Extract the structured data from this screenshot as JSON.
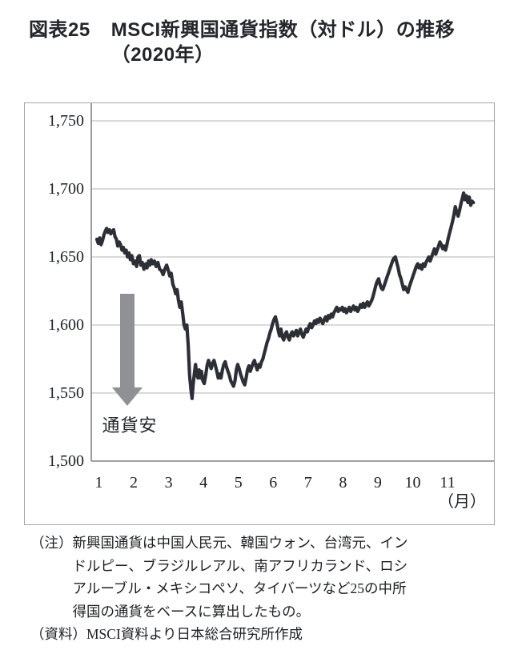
{
  "title": {
    "tag": "図表25",
    "line1": "MSCI新興国通貨指数（対ドル）の推移",
    "line2": "（2020年）"
  },
  "notes": {
    "note_label": "（注）",
    "note_lines": [
      "新興国通貨は中国人民元、韓国ウォン、台湾元、イン",
      "ドルピー、ブラジルレアル、南アフリカランド、ロシ",
      "アルーブル・メキシコペソ、タイバーツなど25の中所",
      "得国の通貨をベースに算出したもの。"
    ],
    "source_label": "（資料）",
    "source_text": "MSCI資料より日本総合研究所作成"
  },
  "colors": {
    "line": "#2c2f36",
    "grid": "#b5b5b5",
    "axis": "#848484",
    "frame": "#a6a6a6",
    "arrow": "#8f9194",
    "text": "#1c1f26"
  },
  "chart_data": {
    "type": "line",
    "title": "MSCI新興国通貨指数（対ドル）の推移（2020年）",
    "xlabel": "（月）",
    "ylabel": "",
    "ylim": [
      1500,
      1763
    ],
    "xlim": [
      1,
      12.4
    ],
    "grid": true,
    "legend": "none",
    "y_axis": {
      "tick_values": [
        1750,
        1700,
        1650,
        1600,
        1550,
        1500
      ],
      "tick_labels": [
        "1,750",
        "1,700",
        "1,650",
        "1,600",
        "1,550",
        "1,500"
      ]
    },
    "x_axis": {
      "tick_labels": [
        "1",
        "2",
        "3",
        "4",
        "5",
        "6",
        "7",
        "8",
        "9",
        "10",
        "11"
      ],
      "unit_label": "（月）"
    },
    "annotation": {
      "arrow_direction": "down",
      "label": "通貨安"
    },
    "series": [
      {
        "name": "MSCI新興国通貨指数（対ドル）",
        "x_unit": "month (1 = Jan 1, 2020)",
        "points": [
          [
            1.0,
            1663
          ],
          [
            1.04,
            1660
          ],
          [
            1.08,
            1664
          ],
          [
            1.12,
            1659
          ],
          [
            1.16,
            1662
          ],
          [
            1.2,
            1666
          ],
          [
            1.24,
            1669
          ],
          [
            1.28,
            1671
          ],
          [
            1.32,
            1668
          ],
          [
            1.36,
            1670
          ],
          [
            1.4,
            1667
          ],
          [
            1.44,
            1669
          ],
          [
            1.48,
            1670
          ],
          [
            1.52,
            1665
          ],
          [
            1.56,
            1663
          ],
          [
            1.6,
            1658
          ],
          [
            1.64,
            1661
          ],
          [
            1.68,
            1659
          ],
          [
            1.72,
            1655
          ],
          [
            1.76,
            1657
          ],
          [
            1.8,
            1653
          ],
          [
            1.84,
            1655
          ],
          [
            1.88,
            1650
          ],
          [
            1.92,
            1653
          ],
          [
            1.96,
            1648
          ],
          [
            2.0,
            1651
          ],
          [
            2.05,
            1645
          ],
          [
            2.1,
            1647
          ],
          [
            2.14,
            1643
          ],
          [
            2.18,
            1650
          ],
          [
            2.22,
            1651
          ],
          [
            2.26,
            1644
          ],
          [
            2.3,
            1646
          ],
          [
            2.35,
            1641
          ],
          [
            2.4,
            1645
          ],
          [
            2.44,
            1642
          ],
          [
            2.48,
            1647
          ],
          [
            2.52,
            1644
          ],
          [
            2.56,
            1648
          ],
          [
            2.6,
            1645
          ],
          [
            2.65,
            1647
          ],
          [
            2.7,
            1643
          ],
          [
            2.75,
            1646
          ],
          [
            2.8,
            1641
          ],
          [
            2.85,
            1640
          ],
          [
            2.9,
            1637
          ],
          [
            2.95,
            1641
          ],
          [
            3.0,
            1644
          ],
          [
            3.05,
            1640
          ],
          [
            3.09,
            1636
          ],
          [
            3.13,
            1638
          ],
          [
            3.18,
            1630
          ],
          [
            3.22,
            1627
          ],
          [
            3.26,
            1623
          ],
          [
            3.3,
            1626
          ],
          [
            3.34,
            1618
          ],
          [
            3.38,
            1613
          ],
          [
            3.42,
            1617
          ],
          [
            3.46,
            1609
          ],
          [
            3.5,
            1600
          ],
          [
            3.54,
            1597
          ],
          [
            3.58,
            1600
          ],
          [
            3.62,
            1585
          ],
          [
            3.66,
            1563
          ],
          [
            3.7,
            1552
          ],
          [
            3.73,
            1546
          ],
          [
            3.76,
            1556
          ],
          [
            3.8,
            1565
          ],
          [
            3.83,
            1571
          ],
          [
            3.86,
            1564
          ],
          [
            3.9,
            1561
          ],
          [
            3.93,
            1567
          ],
          [
            3.97,
            1561
          ],
          [
            4.0,
            1566
          ],
          [
            4.04,
            1559
          ],
          [
            4.08,
            1557
          ],
          [
            4.12,
            1563
          ],
          [
            4.16,
            1570
          ],
          [
            4.2,
            1574
          ],
          [
            4.24,
            1571
          ],
          [
            4.28,
            1568
          ],
          [
            4.32,
            1572
          ],
          [
            4.36,
            1574
          ],
          [
            4.4,
            1570
          ],
          [
            4.44,
            1566
          ],
          [
            4.48,
            1561
          ],
          [
            4.52,
            1564
          ],
          [
            4.56,
            1561
          ],
          [
            4.6,
            1567
          ],
          [
            4.64,
            1571
          ],
          [
            4.68,
            1573
          ],
          [
            4.72,
            1569
          ],
          [
            4.76,
            1566
          ],
          [
            4.8,
            1563
          ],
          [
            4.84,
            1559
          ],
          [
            4.88,
            1557
          ],
          [
            4.92,
            1555
          ],
          [
            4.96,
            1559
          ],
          [
            5.0,
            1567
          ],
          [
            5.04,
            1571
          ],
          [
            5.08,
            1568
          ],
          [
            5.12,
            1564
          ],
          [
            5.16,
            1561
          ],
          [
            5.2,
            1558
          ],
          [
            5.24,
            1556
          ],
          [
            5.28,
            1561
          ],
          [
            5.32,
            1567
          ],
          [
            5.36,
            1570
          ],
          [
            5.4,
            1566
          ],
          [
            5.44,
            1569
          ],
          [
            5.48,
            1572
          ],
          [
            5.52,
            1574
          ],
          [
            5.56,
            1570
          ],
          [
            5.6,
            1567
          ],
          [
            5.64,
            1571
          ],
          [
            5.68,
            1569
          ],
          [
            5.72,
            1573
          ],
          [
            5.76,
            1575
          ],
          [
            5.8,
            1579
          ],
          [
            5.84,
            1583
          ],
          [
            5.88,
            1587
          ],
          [
            5.92,
            1590
          ],
          [
            5.96,
            1594
          ],
          [
            6.0,
            1597
          ],
          [
            6.04,
            1601
          ],
          [
            6.08,
            1604
          ],
          [
            6.12,
            1606
          ],
          [
            6.16,
            1602
          ],
          [
            6.2,
            1596
          ],
          [
            6.24,
            1592
          ],
          [
            6.28,
            1597
          ],
          [
            6.32,
            1591
          ],
          [
            6.36,
            1589
          ],
          [
            6.4,
            1593
          ],
          [
            6.44,
            1595
          ],
          [
            6.48,
            1591
          ],
          [
            6.52,
            1589
          ],
          [
            6.56,
            1593
          ],
          [
            6.6,
            1595
          ],
          [
            6.64,
            1592
          ],
          [
            6.68,
            1594
          ],
          [
            6.72,
            1596
          ],
          [
            6.76,
            1592
          ],
          [
            6.8,
            1595
          ],
          [
            6.84,
            1597
          ],
          [
            6.88,
            1593
          ],
          [
            6.92,
            1591
          ],
          [
            6.96,
            1594
          ],
          [
            7.0,
            1597
          ],
          [
            7.04,
            1595
          ],
          [
            7.08,
            1599
          ],
          [
            7.12,
            1601
          ],
          [
            7.16,
            1598
          ],
          [
            7.2,
            1600
          ],
          [
            7.24,
            1603
          ],
          [
            7.28,
            1601
          ],
          [
            7.32,
            1604
          ],
          [
            7.36,
            1602
          ],
          [
            7.4,
            1605
          ],
          [
            7.44,
            1603
          ],
          [
            7.48,
            1601
          ],
          [
            7.52,
            1604
          ],
          [
            7.56,
            1606
          ],
          [
            7.6,
            1603
          ],
          [
            7.64,
            1607
          ],
          [
            7.68,
            1605
          ],
          [
            7.72,
            1608
          ],
          [
            7.76,
            1606
          ],
          [
            7.8,
            1609
          ],
          [
            7.84,
            1611
          ],
          [
            7.88,
            1613
          ],
          [
            7.92,
            1610
          ],
          [
            7.96,
            1612
          ],
          [
            8.0,
            1611
          ],
          [
            8.04,
            1613
          ],
          [
            8.08,
            1610
          ],
          [
            8.12,
            1612
          ],
          [
            8.16,
            1609
          ],
          [
            8.2,
            1611
          ],
          [
            8.24,
            1613
          ],
          [
            8.28,
            1610
          ],
          [
            8.32,
            1612
          ],
          [
            8.36,
            1614
          ],
          [
            8.4,
            1611
          ],
          [
            8.44,
            1613
          ],
          [
            8.48,
            1610
          ],
          [
            8.52,
            1612
          ],
          [
            8.56,
            1615
          ],
          [
            8.6,
            1613
          ],
          [
            8.64,
            1616
          ],
          [
            8.68,
            1613
          ],
          [
            8.72,
            1615
          ],
          [
            8.76,
            1617
          ],
          [
            8.8,
            1614
          ],
          [
            8.84,
            1616
          ],
          [
            8.88,
            1618
          ],
          [
            8.92,
            1621
          ],
          [
            8.96,
            1625
          ],
          [
            9.0,
            1629
          ],
          [
            9.04,
            1632
          ],
          [
            9.08,
            1634
          ],
          [
            9.12,
            1630
          ],
          [
            9.16,
            1627
          ],
          [
            9.2,
            1626
          ],
          [
            9.24,
            1629
          ],
          [
            9.28,
            1632
          ],
          [
            9.32,
            1635
          ],
          [
            9.36,
            1638
          ],
          [
            9.4,
            1641
          ],
          [
            9.44,
            1644
          ],
          [
            9.48,
            1647
          ],
          [
            9.52,
            1649
          ],
          [
            9.56,
            1650
          ],
          [
            9.6,
            1646
          ],
          [
            9.64,
            1642
          ],
          [
            9.68,
            1637
          ],
          [
            9.72,
            1634
          ],
          [
            9.76,
            1630
          ],
          [
            9.8,
            1626
          ],
          [
            9.84,
            1628
          ],
          [
            9.88,
            1626
          ],
          [
            9.92,
            1624
          ],
          [
            9.96,
            1628
          ],
          [
            10.0,
            1631
          ],
          [
            10.04,
            1634
          ],
          [
            10.08,
            1637
          ],
          [
            10.12,
            1640
          ],
          [
            10.16,
            1643
          ],
          [
            10.2,
            1645
          ],
          [
            10.24,
            1642
          ],
          [
            10.28,
            1644
          ],
          [
            10.32,
            1641
          ],
          [
            10.36,
            1645
          ],
          [
            10.4,
            1643
          ],
          [
            10.44,
            1646
          ],
          [
            10.48,
            1648
          ],
          [
            10.52,
            1650
          ],
          [
            10.56,
            1647
          ],
          [
            10.6,
            1650
          ],
          [
            10.64,
            1653
          ],
          [
            10.68,
            1656
          ],
          [
            10.72,
            1652
          ],
          [
            10.76,
            1655
          ],
          [
            10.8,
            1658
          ],
          [
            10.84,
            1661
          ],
          [
            10.88,
            1659
          ],
          [
            10.92,
            1656
          ],
          [
            10.96,
            1658
          ],
          [
            11.0,
            1655
          ],
          [
            11.04,
            1659
          ],
          [
            11.08,
            1664
          ],
          [
            11.12,
            1668
          ],
          [
            11.16,
            1672
          ],
          [
            11.2,
            1676
          ],
          [
            11.24,
            1681
          ],
          [
            11.28,
            1687
          ],
          [
            11.32,
            1683
          ],
          [
            11.36,
            1680
          ],
          [
            11.4,
            1684
          ],
          [
            11.44,
            1689
          ],
          [
            11.48,
            1693
          ],
          [
            11.52,
            1697
          ],
          [
            11.56,
            1692
          ],
          [
            11.6,
            1695
          ],
          [
            11.64,
            1690
          ],
          [
            11.68,
            1694
          ],
          [
            11.72,
            1688
          ],
          [
            11.76,
            1691
          ],
          [
            11.8,
            1690
          ]
        ]
      }
    ]
  }
}
